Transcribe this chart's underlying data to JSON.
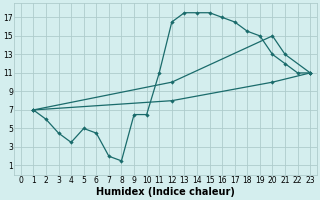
{
  "xlabel": "Humidex (Indice chaleur)",
  "background_color": "#d4eeee",
  "grid_color": "#aecccc",
  "line_color": "#1a6b6b",
  "xlim": [
    -0.5,
    23.5
  ],
  "ylim": [
    0,
    18.5
  ],
  "xticks": [
    0,
    1,
    2,
    3,
    4,
    5,
    6,
    7,
    8,
    9,
    10,
    11,
    12,
    13,
    14,
    15,
    16,
    17,
    18,
    19,
    20,
    21,
    22,
    23
  ],
  "yticks": [
    1,
    3,
    5,
    7,
    9,
    11,
    13,
    15,
    17
  ],
  "line1_x": [
    1,
    2,
    3,
    4,
    5,
    6,
    7,
    8,
    9,
    10,
    11,
    12,
    13,
    14,
    15,
    16,
    17,
    18,
    19,
    20,
    21,
    22,
    23
  ],
  "line1_y": [
    7,
    6,
    4.5,
    3.5,
    5,
    4.5,
    2,
    1.5,
    6.5,
    6.5,
    11,
    16.5,
    17.5,
    17.5,
    17.5,
    17,
    16.5,
    15.5,
    15,
    13,
    12,
    11,
    11
  ],
  "line2_x": [
    1,
    12,
    20,
    21,
    23
  ],
  "line2_y": [
    7,
    10,
    15,
    13,
    11
  ],
  "line3_x": [
    1,
    12,
    20,
    23
  ],
  "line3_y": [
    7,
    8,
    10,
    11
  ],
  "fontsize_label": 7,
  "fontsize_tick": 5.5
}
